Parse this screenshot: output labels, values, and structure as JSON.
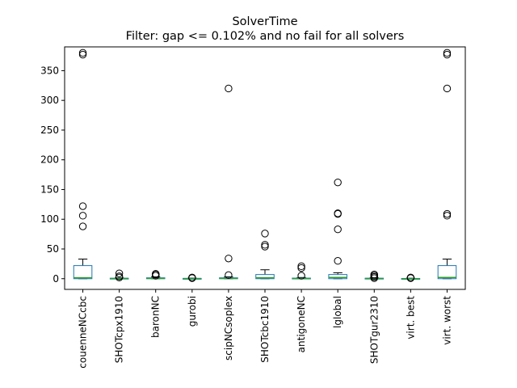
{
  "chart_data": {
    "type": "box",
    "title": "SolverTime",
    "subtitle": "Filter: gap <= 0.102% and no fail for all solvers",
    "xlabel": "",
    "ylabel": "",
    "ylim": [
      -18,
      390
    ],
    "yticks": [
      0,
      50,
      100,
      150,
      200,
      250,
      300,
      350
    ],
    "grid": false,
    "colors": {
      "box": "#1f77b4",
      "median": "#2ca02c",
      "whisker": "#000000",
      "flier": "#000000"
    },
    "boxes": [
      {
        "category": "couenneNCcbc",
        "whislo": 0.0,
        "q1": 0.0,
        "med": 1.5,
        "q3": 22.0,
        "whishi": 33.0,
        "fliers": [
          88,
          106,
          122,
          377,
          380
        ]
      },
      {
        "category": "SHOTcpx1910",
        "whislo": 0.0,
        "q1": 0.0,
        "med": 0.3,
        "q3": 0.8,
        "whishi": 1.5,
        "fliers": [
          2,
          4,
          9
        ]
      },
      {
        "category": "baronNC",
        "whislo": 0.0,
        "q1": 0.0,
        "med": 0.5,
        "q3": 1.5,
        "whishi": 3.0,
        "fliers": [
          5,
          7,
          8
        ]
      },
      {
        "category": "gurobi",
        "whislo": 0.0,
        "q1": 0.0,
        "med": 0.2,
        "q3": 0.5,
        "whishi": 1.0,
        "fliers": [
          1,
          2
        ]
      },
      {
        "category": "scipNCsoplex",
        "whislo": 0.0,
        "q1": 0.0,
        "med": 0.5,
        "q3": 1.5,
        "whishi": 3.0,
        "fliers": [
          6,
          34,
          320
        ]
      },
      {
        "category": "SHOTcbc1910",
        "whislo": 0.0,
        "q1": 0.0,
        "med": 1.5,
        "q3": 7.0,
        "whishi": 15.0,
        "fliers": [
          54,
          57,
          76
        ]
      },
      {
        "category": "antigoneNC",
        "whislo": 0.0,
        "q1": 0.0,
        "med": 0.4,
        "q3": 1.0,
        "whishi": 2.0,
        "fliers": [
          5,
          18,
          21
        ]
      },
      {
        "category": "lglobal",
        "whislo": 0.0,
        "q1": 0.0,
        "med": 2.0,
        "q3": 7.0,
        "whishi": 10.0,
        "fliers": [
          30,
          83,
          109,
          110,
          162
        ]
      },
      {
        "category": "SHOTgur2310",
        "whislo": 0.0,
        "q1": 0.0,
        "med": 0.3,
        "q3": 0.8,
        "whishi": 1.5,
        "fliers": [
          1,
          3,
          5,
          7
        ]
      },
      {
        "category": "virt. best",
        "whislo": 0.0,
        "q1": 0.0,
        "med": 0.1,
        "q3": 0.4,
        "whishi": 0.8,
        "fliers": [
          1,
          2
        ]
      },
      {
        "category": "virt. worst",
        "whislo": 0.0,
        "q1": 0.0,
        "med": 2.0,
        "q3": 22.0,
        "whishi": 33.0,
        "fliers": [
          106,
          109,
          320,
          377,
          380
        ]
      }
    ]
  }
}
